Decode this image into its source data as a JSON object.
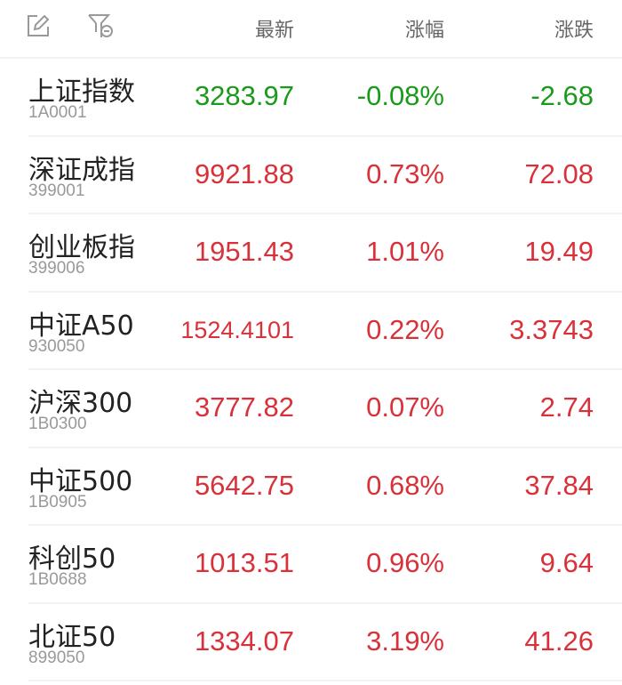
{
  "colors": {
    "up": "#d9313a",
    "down": "#1a9a1a"
  },
  "header": {
    "edit_icon": "edit-icon",
    "filter_icon": "filter-remove-icon",
    "col_latest": "最新",
    "col_change_pct": "涨幅",
    "col_change": "涨跌"
  },
  "rows": [
    {
      "name": "上证指数",
      "code": "1A0001",
      "latest": "3283.97",
      "pct": "-0.08%",
      "change": "-2.68",
      "dir": "down"
    },
    {
      "name": "深证成指",
      "code": "399001",
      "latest": "9921.88",
      "pct": "0.73%",
      "change": "72.08",
      "dir": "up"
    },
    {
      "name": "创业板指",
      "code": "399006",
      "latest": "1951.43",
      "pct": "1.01%",
      "change": "19.49",
      "dir": "up"
    },
    {
      "name": "中证A50",
      "code": "930050",
      "latest": "1524.4101",
      "pct": "0.22%",
      "change": "3.3743",
      "dir": "up"
    },
    {
      "name": "沪深300",
      "code": "1B0300",
      "latest": "3777.82",
      "pct": "0.07%",
      "change": "2.74",
      "dir": "up"
    },
    {
      "name": "中证500",
      "code": "1B0905",
      "latest": "5642.75",
      "pct": "0.68%",
      "change": "37.84",
      "dir": "up"
    },
    {
      "name": "科创50",
      "code": "1B0688",
      "latest": "1013.51",
      "pct": "0.96%",
      "change": "9.64",
      "dir": "up"
    },
    {
      "name": "北证50",
      "code": "899050",
      "latest": "1334.07",
      "pct": "3.19%",
      "change": "41.26",
      "dir": "up"
    }
  ]
}
